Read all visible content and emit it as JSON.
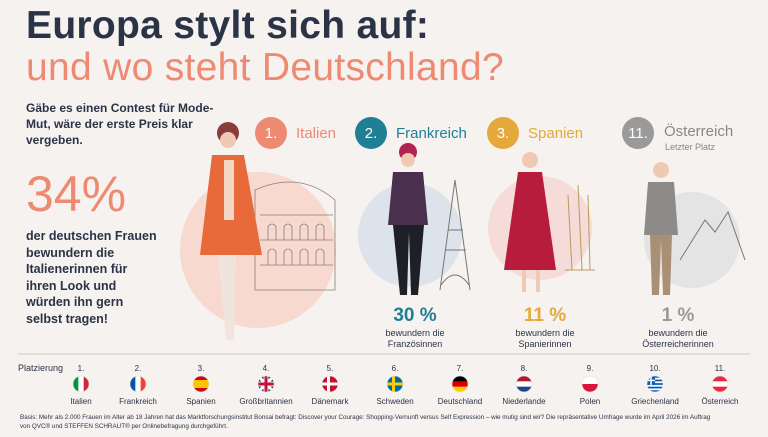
{
  "title": {
    "line1": "Europa stylt sich auf:",
    "line2": "und wo steht Deutschland?"
  },
  "intro": "Gäbe es einen Contest für Mode-Mut, wäre der erste Preis klar vergeben.",
  "highlight": {
    "value": "34%",
    "text": "der deutschen Frauen bewundern die Italienerinnen für ihren Look und würden ihn gern selbst tragen!"
  },
  "podium": [
    {
      "rank": "1.",
      "country": "Italien"
    },
    {
      "rank": "2.",
      "country": "Frankreich",
      "value": "30 %",
      "caption": "bewundern die Französinnen"
    },
    {
      "rank": "3.",
      "country": "Spanien",
      "value": "11 %",
      "caption": "bewundern die Spanierinnen"
    },
    {
      "rank": "11.",
      "country": "Österreich",
      "note": "Letzter Platz",
      "value": "1 %",
      "caption": "bewundern die Österreicherinnen"
    }
  ],
  "ranking": {
    "label": "Platzierung",
    "items": [
      {
        "rank": "1.",
        "country": "Italien"
      },
      {
        "rank": "2.",
        "country": "Frankreich"
      },
      {
        "rank": "3.",
        "country": "Spanien"
      },
      {
        "rank": "4.",
        "country": "Großbritannien"
      },
      {
        "rank": "5.",
        "country": "Dänemark"
      },
      {
        "rank": "6.",
        "country": "Schweden"
      },
      {
        "rank": "7.",
        "country": "Deutschland"
      },
      {
        "rank": "8.",
        "country": "Niederlande"
      },
      {
        "rank": "9.",
        "country": "Polen"
      },
      {
        "rank": "10.",
        "country": "Griechenland"
      },
      {
        "rank": "11.",
        "country": "Österreich"
      }
    ]
  },
  "footer": "Basis: Mehr als 2.000 Frauen im Alter ab 18 Jahren hat das Marktforschungsinstitut Bonsai befragt: Discover your Courage: Shopping-Vernunft versus Self Expression – wie mutig sind wir? Die repräsentative Umfrage wurde im April 2026 im Auftrag von QVC® und STEFFEN SCHRAUT® per Onlinebefragung durchgeführt."
}
